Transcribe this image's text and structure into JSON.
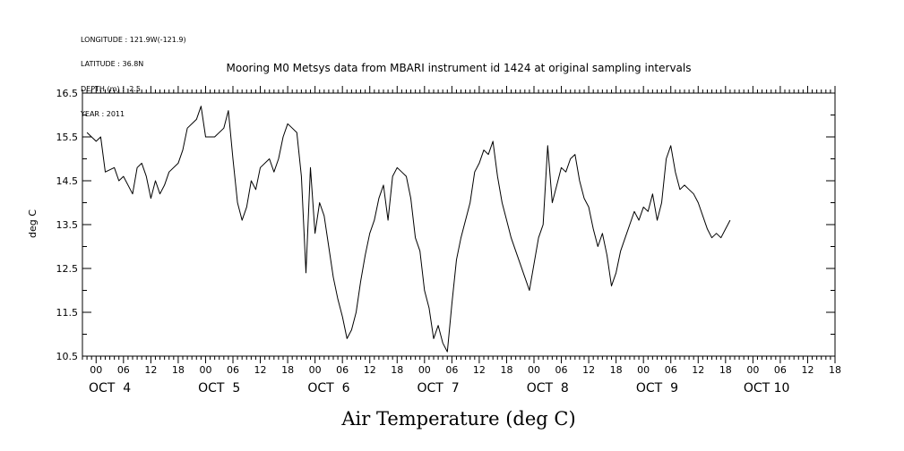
{
  "header": {
    "longitude": "LONGITUDE : 121.9W(-121.9)",
    "latitude": "LATITUDE : 36.8N",
    "depth": "DEPTH (m) : -2.5",
    "year": "YEAR : 2011"
  },
  "chart_data": {
    "type": "line",
    "title": "Mooring M0 Metsys data from MBARI instrument id 1424 at original sampling intervals",
    "xlabel": "Air Temperature (deg C)",
    "ylabel": "deg C",
    "ylim": [
      10.5,
      16.5
    ],
    "yticks": [
      "10.5",
      "11.5",
      "12.5",
      "13.5",
      "14.5",
      "15.5",
      "16.5"
    ],
    "xlim_hours": [
      -3,
      162
    ],
    "x_unit": "hours since OCT 4 00:00",
    "hour_ticks": [
      "00",
      "06",
      "12",
      "18",
      "00",
      "06",
      "12",
      "18",
      "00",
      "06",
      "12",
      "18",
      "00",
      "06",
      "12",
      "18",
      "00",
      "06",
      "12",
      "18",
      "00",
      "06",
      "12",
      "18",
      "00",
      "06",
      "12",
      "18"
    ],
    "day_labels": [
      "OCT  4",
      "OCT  5",
      "OCT  6",
      "OCT  7",
      "OCT  8",
      "OCT  9",
      "OCT 10"
    ],
    "grid": false,
    "series": [
      {
        "points": [
          [
            -2,
            15.6
          ],
          [
            0,
            15.4
          ],
          [
            1,
            15.5
          ],
          [
            2,
            14.7
          ],
          [
            4,
            14.8
          ],
          [
            5,
            14.5
          ],
          [
            6,
            14.6
          ],
          [
            8,
            14.2
          ],
          [
            9,
            14.8
          ],
          [
            10,
            14.9
          ],
          [
            11,
            14.6
          ],
          [
            12,
            14.1
          ],
          [
            13,
            14.5
          ],
          [
            14,
            14.2
          ],
          [
            15,
            14.4
          ],
          [
            16,
            14.7
          ],
          [
            18,
            14.9
          ],
          [
            19,
            15.2
          ],
          [
            20,
            15.7
          ],
          [
            22,
            15.9
          ],
          [
            23,
            16.2
          ],
          [
            24,
            15.5
          ],
          [
            26,
            15.5
          ],
          [
            28,
            15.7
          ],
          [
            29,
            16.1
          ],
          [
            30,
            15.0
          ],
          [
            31,
            14.0
          ],
          [
            32,
            13.6
          ],
          [
            33,
            13.9
          ],
          [
            34,
            14.5
          ],
          [
            35,
            14.3
          ],
          [
            36,
            14.8
          ],
          [
            38,
            15.0
          ],
          [
            39,
            14.7
          ],
          [
            40,
            15.0
          ],
          [
            41,
            15.5
          ],
          [
            42,
            15.8
          ],
          [
            43,
            15.7
          ],
          [
            44,
            15.6
          ],
          [
            45,
            14.6
          ],
          [
            46,
            12.4
          ],
          [
            47,
            14.8
          ],
          [
            48,
            13.3
          ],
          [
            49,
            14.0
          ],
          [
            50,
            13.7
          ],
          [
            51,
            13.0
          ],
          [
            52,
            12.3
          ],
          [
            53,
            11.8
          ],
          [
            54,
            11.4
          ],
          [
            55,
            10.9
          ],
          [
            56,
            11.1
          ],
          [
            57,
            11.5
          ],
          [
            58,
            12.2
          ],
          [
            59,
            12.8
          ],
          [
            60,
            13.3
          ],
          [
            61,
            13.6
          ],
          [
            62,
            14.1
          ],
          [
            63,
            14.4
          ],
          [
            64,
            13.6
          ],
          [
            65,
            14.6
          ],
          [
            66,
            14.8
          ],
          [
            67,
            14.7
          ],
          [
            68,
            14.6
          ],
          [
            69,
            14.1
          ],
          [
            70,
            13.2
          ],
          [
            71,
            12.9
          ],
          [
            72,
            12.0
          ],
          [
            73,
            11.6
          ],
          [
            74,
            10.9
          ],
          [
            75,
            11.2
          ],
          [
            76,
            10.8
          ],
          [
            77,
            10.6
          ],
          [
            78,
            11.7
          ],
          [
            79,
            12.7
          ],
          [
            80,
            13.2
          ],
          [
            81,
            13.6
          ],
          [
            82,
            14.0
          ],
          [
            83,
            14.7
          ],
          [
            84,
            14.9
          ],
          [
            85,
            15.2
          ],
          [
            86,
            15.1
          ],
          [
            87,
            15.4
          ],
          [
            88,
            14.6
          ],
          [
            89,
            14.0
          ],
          [
            90,
            13.6
          ],
          [
            91,
            13.2
          ],
          [
            92,
            12.9
          ],
          [
            93,
            12.6
          ],
          [
            94,
            12.3
          ],
          [
            95,
            12.0
          ],
          [
            96,
            12.6
          ],
          [
            97,
            13.2
          ],
          [
            98,
            13.5
          ],
          [
            99,
            15.3
          ],
          [
            100,
            14.0
          ],
          [
            101,
            14.4
          ],
          [
            102,
            14.8
          ],
          [
            103,
            14.7
          ],
          [
            104,
            15.0
          ],
          [
            105,
            15.1
          ],
          [
            106,
            14.5
          ],
          [
            107,
            14.1
          ],
          [
            108,
            13.9
          ],
          [
            109,
            13.4
          ],
          [
            110,
            13.0
          ],
          [
            111,
            13.3
          ],
          [
            112,
            12.8
          ],
          [
            113,
            12.1
          ],
          [
            114,
            12.4
          ],
          [
            115,
            12.9
          ],
          [
            116,
            13.2
          ],
          [
            117,
            13.5
          ],
          [
            118,
            13.8
          ],
          [
            119,
            13.6
          ],
          [
            120,
            13.9
          ],
          [
            121,
            13.8
          ],
          [
            122,
            14.2
          ],
          [
            123,
            13.6
          ],
          [
            124,
            14.0
          ],
          [
            125,
            15.0
          ],
          [
            126,
            15.3
          ],
          [
            127,
            14.7
          ],
          [
            128,
            14.3
          ],
          [
            129,
            14.4
          ],
          [
            130,
            14.3
          ],
          [
            131,
            14.2
          ],
          [
            132,
            14.0
          ],
          [
            133,
            13.7
          ],
          [
            134,
            13.4
          ],
          [
            135,
            13.2
          ],
          [
            136,
            13.3
          ],
          [
            137,
            13.2
          ],
          [
            138,
            13.4
          ],
          [
            139,
            13.6
          ]
        ]
      }
    ]
  }
}
